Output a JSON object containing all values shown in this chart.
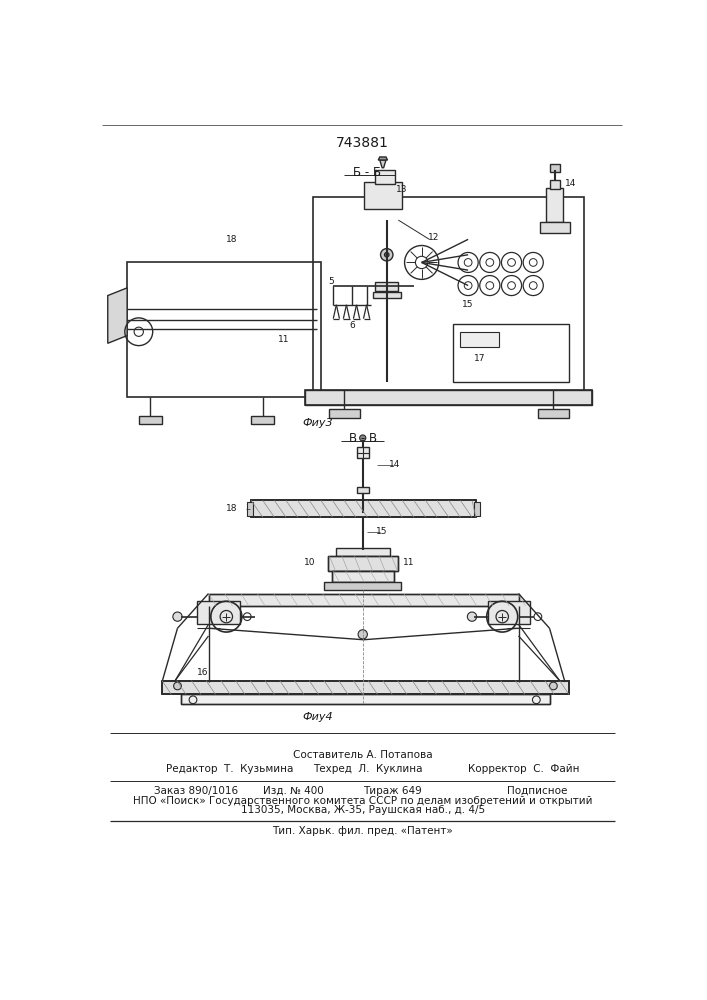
{
  "patent_number": "743881",
  "fig3_label": "Б - Б",
  "fig4_label": "В - В",
  "fig3_caption": "Фиу3",
  "fig4_caption": "Фиу4",
  "footer_composer": "Составитель А. Потапова",
  "footer_editor": "Редактор  Т.  Кузьмина",
  "footer_tech": "Техред  Л.  Куклина",
  "footer_corrector": "Корректор  С.  Файн",
  "footer_order": "Заказ 890/1016",
  "footer_izd": "Изд. № 400",
  "footer_tirazh": "Тираж 649",
  "footer_podp": "Подписное",
  "footer_npo": "НПО «Поиск» Государственного комитета СССР по делам изобретений и открытий",
  "footer_addr": "113035, Москва, Ж-35, Раушская наб., д. 4/5",
  "footer_tip": "Тип. Харьк. фил. пред. «Патент»",
  "bg_color": "#ffffff",
  "line_color": "#2a2a2a",
  "text_color": "#1a1a1a"
}
